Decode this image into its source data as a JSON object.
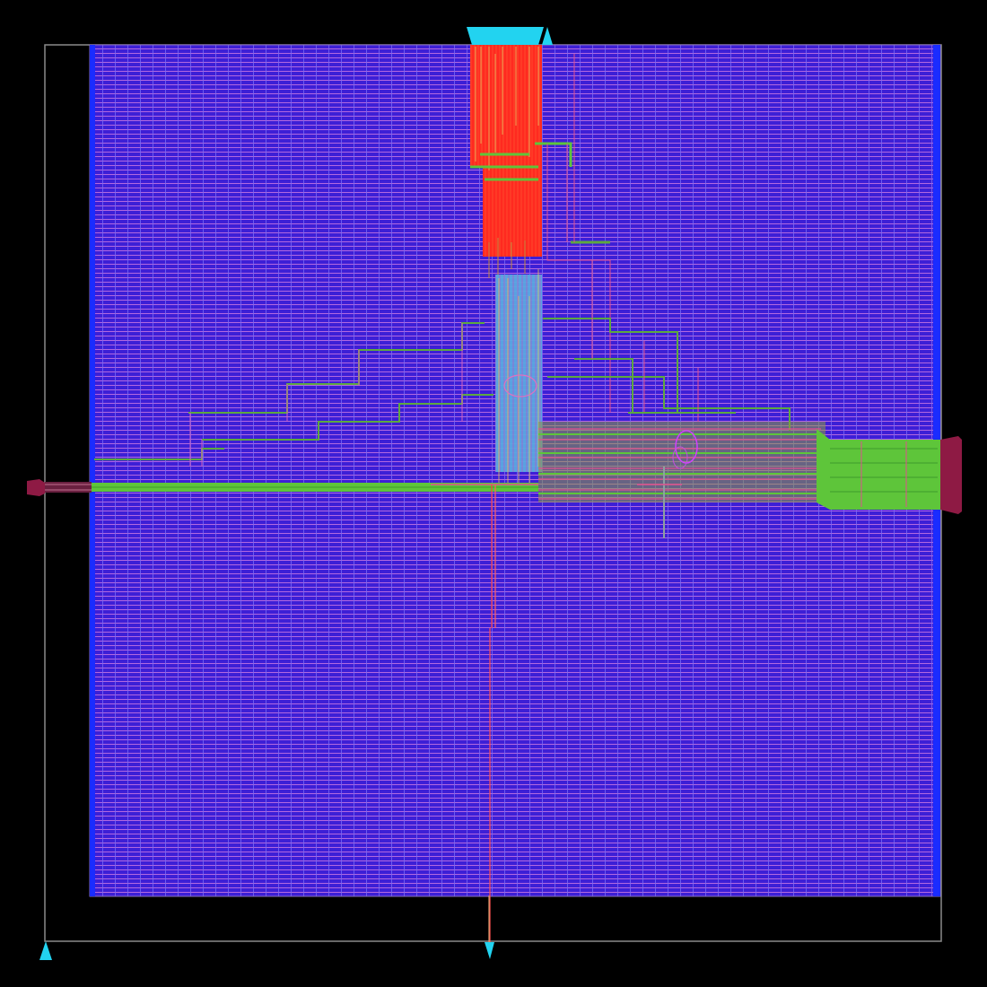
{
  "viewer": {
    "mode": "chip-layout",
    "background": "#000000",
    "has_visible_text": false
  },
  "colors": {
    "die_outline": "#8a8a8a",
    "core_fill": "#3d1fd6",
    "grid_h": "#d87ad8",
    "grid_v": "#6a5cf0",
    "power_rail": "#1a2cff",
    "pin_cyan": "#22d3f0",
    "pin_maroon": "#8e1a44",
    "route_red": "#ff2020",
    "route_green": "#5ec53a",
    "route_green_dark": "#3f9a2c",
    "route_cyan": "#5fb3e8",
    "route_yellow": "#e0c060",
    "route_orange": "#ff7040",
    "route_pink": "#e060c0",
    "route_olive": "#8a9a30",
    "route_magenta": "#d040ff"
  },
  "layers": [
    {
      "name": "die-outline",
      "icon": "rectangle-outline"
    },
    {
      "name": "core-area",
      "icon": "hatched-grid"
    },
    {
      "name": "power-rails",
      "icon": "vertical-stripes"
    },
    {
      "name": "routing",
      "icon": "wires"
    },
    {
      "name": "io-pins",
      "icon": "triangle-markers"
    }
  ],
  "pins": [
    {
      "name": "top-pin-cluster",
      "side": "top",
      "color": "cyan"
    },
    {
      "name": "top-pin-single",
      "side": "top",
      "color": "cyan"
    },
    {
      "name": "left-pin",
      "side": "left",
      "color": "maroon"
    },
    {
      "name": "right-pin",
      "side": "right",
      "color": "maroon"
    },
    {
      "name": "bottom-left-pin",
      "side": "bottom",
      "color": "cyan"
    },
    {
      "name": "bottom-center-pin",
      "side": "bottom",
      "color": "cyan"
    }
  ]
}
